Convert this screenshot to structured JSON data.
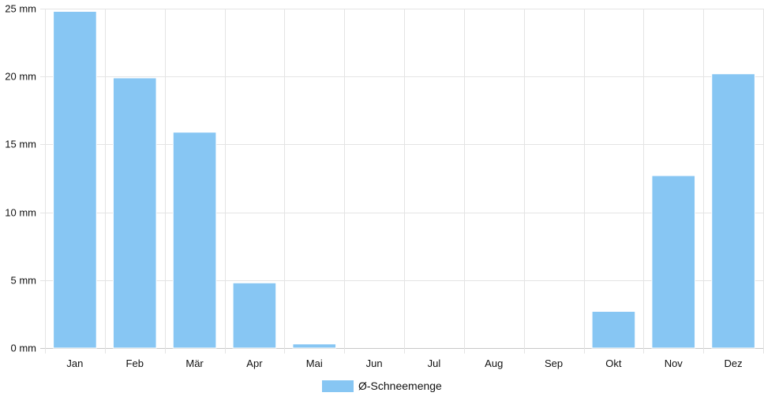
{
  "chart_data": {
    "type": "bar",
    "categories": [
      "Jan",
      "Feb",
      "Mär",
      "Apr",
      "Mai",
      "Jun",
      "Jul",
      "Aug",
      "Sep",
      "Okt",
      "Nov",
      "Dez"
    ],
    "series": [
      {
        "name": "Ø-Schneemenge",
        "values": [
          24.8,
          19.9,
          15.9,
          4.8,
          0.3,
          0,
          0,
          0,
          0,
          2.7,
          12.7,
          20.2
        ],
        "color": "#87c6f3"
      }
    ],
    "ylim": [
      0,
      25
    ],
    "yticks": [
      0,
      5,
      10,
      15,
      20,
      25
    ],
    "ytick_labels": [
      "0 mm",
      "5 mm",
      "10 mm",
      "15 mm",
      "20 mm",
      "25 mm"
    ],
    "grid": true,
    "legend_position": "bottom"
  }
}
